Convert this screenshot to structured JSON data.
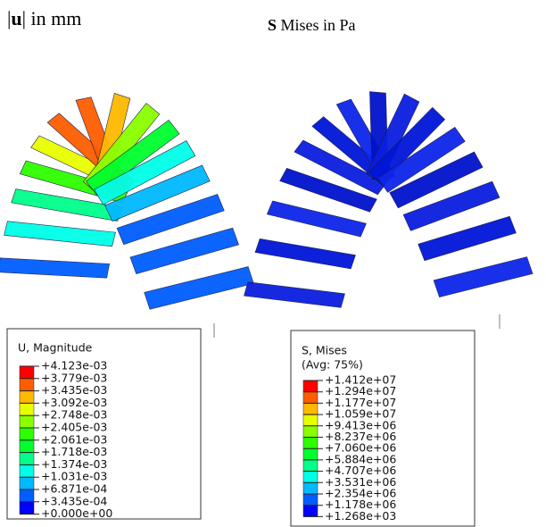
{
  "left": {
    "title": [
      "|",
      "u",
      "| in mm"
    ],
    "legend": {
      "title": "U, Magnitude",
      "labels": [
        "+4.123e-03",
        "+3.779e-03",
        "+3.435e-03",
        "+3.092e-03",
        "+2.748e-03",
        "+2.405e-03",
        "+2.061e-03",
        "+1.718e-03",
        "+1.374e-03",
        "+1.031e-03",
        "+6.871e-04",
        "+3.435e-04",
        "+0.000e+00"
      ]
    }
  },
  "right": {
    "title": [
      "S",
      " Mises in Pa"
    ],
    "legend": {
      "title": "S, Mises",
      "subtitle": "(Avg: 75%)",
      "labels": [
        "+1.412e+07",
        "+1.294e+07",
        "+1.177e+07",
        "+1.059e+07",
        "+9.413e+06",
        "+8.237e+06",
        "+7.060e+06",
        "+5.884e+06",
        "+4.707e+06",
        "+3.531e+06",
        "+2.354e+06",
        "+1.178e+06",
        "+1.268e+03"
      ]
    }
  }
}
